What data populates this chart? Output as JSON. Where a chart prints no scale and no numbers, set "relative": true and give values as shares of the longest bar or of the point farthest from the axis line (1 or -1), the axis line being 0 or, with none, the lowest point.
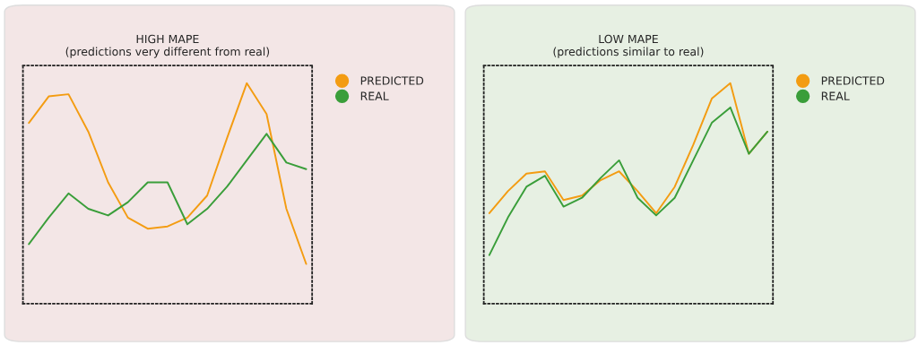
{
  "chart_data": [
    {
      "type": "line",
      "title": "HIGH MAPE",
      "subtitle": "(predictions very different from real)",
      "relative": true,
      "legend": "right",
      "marker": "none",
      "line_style": "solid",
      "categories": [
        null,
        null,
        null,
        null,
        null,
        null,
        null,
        null,
        null,
        null,
        null,
        null,
        null,
        null,
        null
      ],
      "series": [
        {
          "name": "PREDICTED",
          "color": "#f39c12",
          "values": [
            0.82,
            0.94,
            0.95,
            0.78,
            0.55,
            0.39,
            0.34,
            0.35,
            0.39,
            0.49,
            0.75,
            1.0,
            0.86,
            0.43,
            0.18
          ]
        },
        {
          "name": "REAL",
          "color": "#3a9e3a",
          "values": [
            0.27,
            0.39,
            0.5,
            0.43,
            0.4,
            0.46,
            0.55,
            0.55,
            0.36,
            0.43,
            0.53,
            0.65,
            0.77,
            0.64,
            0.61
          ]
        }
      ]
    },
    {
      "type": "line",
      "title": "LOW MAPE",
      "subtitle": "(predictions similar to real)",
      "relative": true,
      "legend": "right",
      "marker": "none",
      "line_style": "solid",
      "categories": [
        null,
        null,
        null,
        null,
        null,
        null,
        null,
        null,
        null,
        null,
        null,
        null,
        null,
        null,
        null,
        null
      ],
      "series": [
        {
          "name": "PREDICTED",
          "color": "#f39c12",
          "values": [
            0.41,
            0.51,
            0.59,
            0.6,
            0.47,
            0.49,
            0.56,
            0.6,
            0.51,
            0.41,
            0.53,
            0.72,
            0.93,
            1.0,
            0.68,
            0.78
          ]
        },
        {
          "name": "REAL",
          "color": "#3a9e3a",
          "values": [
            0.22,
            0.39,
            0.53,
            0.58,
            0.44,
            0.48,
            0.57,
            0.65,
            0.48,
            0.4,
            0.48,
            0.65,
            0.82,
            0.89,
            0.68,
            0.78
          ]
        }
      ]
    }
  ]
}
